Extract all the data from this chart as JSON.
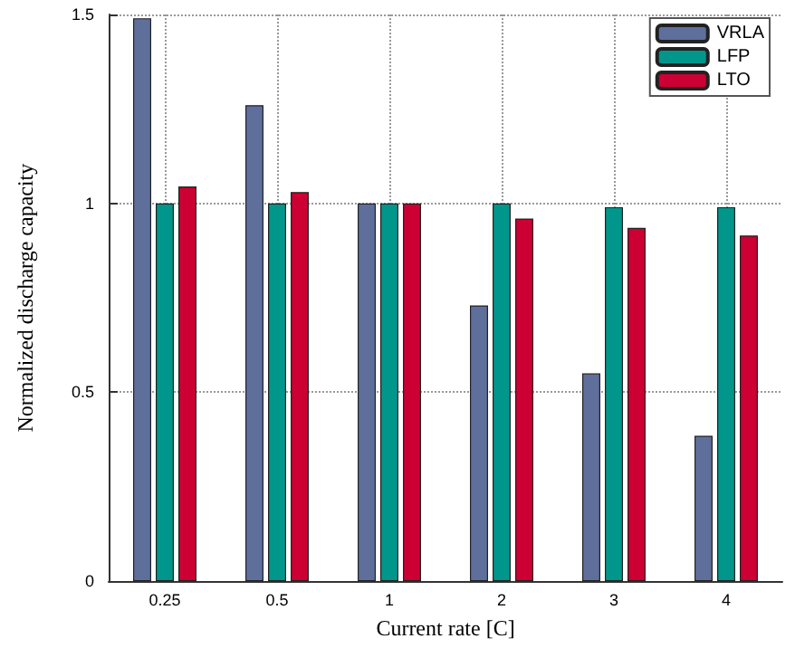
{
  "chart_data": {
    "type": "bar",
    "xlabel": "Current rate [C]",
    "ylabel": "Normalized discharge capacity",
    "categories": [
      "0.25",
      "0.5",
      "1",
      "2",
      "3",
      "4"
    ],
    "series": [
      {
        "name": "VRLA",
        "color": "#5f6f9c",
        "values": [
          1.49,
          1.26,
          1.0,
          0.73,
          0.55,
          0.385
        ]
      },
      {
        "name": "LFP",
        "color": "#00968c",
        "values": [
          1.0,
          1.0,
          1.0,
          1.0,
          0.99,
          0.99
        ]
      },
      {
        "name": "LTO",
        "color": "#cc0033",
        "values": [
          1.045,
          1.03,
          1.0,
          0.96,
          0.935,
          0.915
        ]
      }
    ],
    "ylim": [
      0,
      1.5
    ],
    "yticks": [
      0,
      0.5,
      1,
      1.5
    ],
    "grid": true,
    "legend": "top right"
  }
}
